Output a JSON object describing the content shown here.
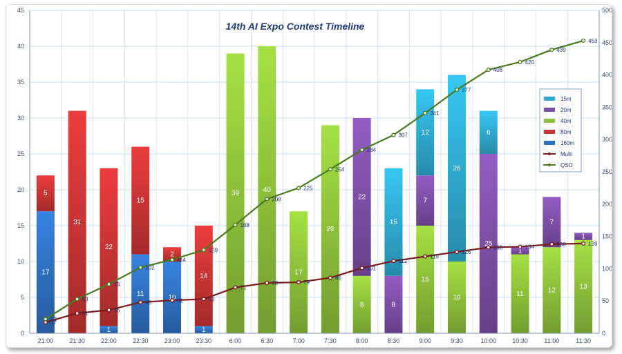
{
  "chart_data": {
    "type": "bar",
    "title": "14th AI Expo Contest Timeline",
    "categories": [
      "21:00",
      "21:30",
      "22:00",
      "22:30",
      "23:00",
      "23:30",
      "6:00",
      "6:30",
      "7:00",
      "7:30",
      "8:00",
      "8:30",
      "9:00",
      "9:30",
      "10:00",
      "10:30",
      "11:00",
      "11:30"
    ],
    "stacking": "stacked",
    "ylim": [
      0,
      45
    ],
    "yticks": [
      0,
      5,
      10,
      15,
      20,
      25,
      30,
      35,
      40,
      45
    ],
    "y2lim": [
      0,
      500
    ],
    "y2ticks": [
      0,
      50,
      100,
      150,
      200,
      250,
      300,
      350,
      400,
      450,
      500
    ],
    "series": [
      {
        "name": "160m",
        "kind": "bar",
        "color": "#2f6fbf",
        "values": [
          17,
          0,
          1,
          11,
          10,
          1,
          0,
          0,
          0,
          0,
          0,
          0,
          0,
          0,
          0,
          0,
          0,
          0
        ]
      },
      {
        "name": "80m",
        "kind": "bar",
        "color": "#c83434",
        "values": [
          5,
          31,
          22,
          15,
          2,
          14,
          0,
          0,
          0,
          0,
          0,
          0,
          0,
          0,
          0,
          0,
          0,
          0
        ]
      },
      {
        "name": "40m",
        "kind": "bar",
        "color": "#8cbf3a",
        "values": [
          0,
          0,
          0,
          0,
          0,
          0,
          39,
          40,
          17,
          29,
          8,
          0,
          15,
          10,
          0,
          11,
          12,
          13
        ]
      },
      {
        "name": "20m",
        "kind": "bar",
        "color": "#7d4ea6",
        "values": [
          0,
          0,
          0,
          0,
          0,
          0,
          0,
          0,
          0,
          0,
          22,
          8,
          7,
          0,
          25,
          1,
          7,
          1
        ]
      },
      {
        "name": "15m",
        "kind": "bar",
        "color": "#2fa9cf",
        "values": [
          0,
          0,
          0,
          0,
          0,
          0,
          0,
          0,
          0,
          0,
          0,
          15,
          12,
          26,
          6,
          0,
          0,
          0
        ]
      },
      {
        "name": "Multi",
        "kind": "line",
        "axis": "right",
        "color": "#7a1a1a",
        "values": [
          17,
          31,
          36,
          48,
          51,
          53,
          71,
          78,
          79,
          86,
          101,
          112,
          119,
          126,
          133,
          134,
          138,
          139
        ]
      },
      {
        "name": "QSO",
        "kind": "line",
        "axis": "right",
        "color": "#4a7a1e",
        "values": [
          22,
          53,
          76,
          102,
          114,
          129,
          168,
          208,
          225,
          254,
          284,
          307,
          341,
          377,
          408,
          420,
          439,
          453
        ]
      }
    ],
    "value_labels": {
      "bars": [
        [
          "17",
          "5"
        ],
        [
          "31"
        ],
        [
          "1",
          "22"
        ],
        [
          "11",
          "15"
        ],
        [
          "10",
          "2"
        ],
        [
          "1",
          "14"
        ],
        [
          "39"
        ],
        [
          "40"
        ],
        [
          "17"
        ],
        [
          "29"
        ],
        [
          "8",
          "22"
        ],
        [
          "8",
          "15"
        ],
        [
          "15",
          "7",
          "12"
        ],
        [
          "10",
          "26"
        ],
        [
          "25",
          "6"
        ],
        [
          "11",
          "1"
        ],
        [
          "12",
          "7"
        ],
        [
          "13",
          "1"
        ]
      ],
      "Multi": [
        "17",
        "31",
        "36",
        "48",
        "51",
        "53",
        "71",
        "78",
        "79",
        "86",
        "101",
        "112",
        "119",
        "126",
        "133",
        "134",
        "138",
        "139"
      ],
      "QSO": [
        "22",
        "53",
        "76",
        "102",
        "114",
        "129",
        "168",
        "208",
        "225",
        "254",
        "284",
        "307",
        "341",
        "377",
        "408",
        "420",
        "439",
        "453"
      ]
    },
    "legend": {
      "position": "right",
      "order": [
        "15m",
        "20m",
        "40m",
        "80m",
        "160m",
        "Multi",
        "QSO"
      ]
    },
    "grid": true
  }
}
